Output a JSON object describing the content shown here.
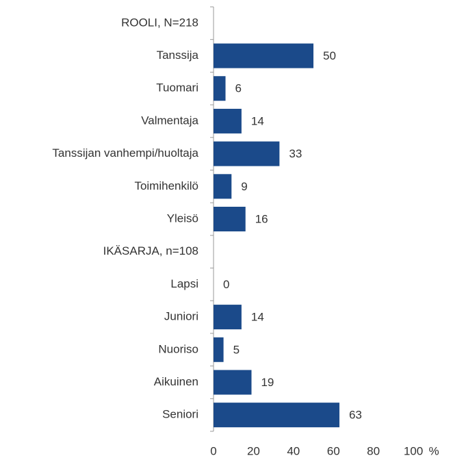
{
  "chart_data": {
    "type": "bar",
    "orientation": "horizontal",
    "categories": [
      "ROOLI, N=218",
      "Tanssija",
      "Tuomari",
      "Valmentaja",
      "Tanssijan vanhempi/huoltaja",
      "Toimihenkilö",
      "Yleisö",
      "IKÄSARJA, n=108",
      "Lapsi",
      "Juniori",
      "Nuoriso",
      "Aikuinen",
      "Seniori"
    ],
    "values": [
      null,
      50,
      6,
      14,
      33,
      9,
      16,
      null,
      0,
      14,
      5,
      19,
      63
    ],
    "color": "#1b4a8a",
    "xlim": [
      0,
      100
    ],
    "xticks": [
      0,
      20,
      40,
      60,
      80,
      100
    ],
    "x_label": "%",
    "grid": false
  }
}
